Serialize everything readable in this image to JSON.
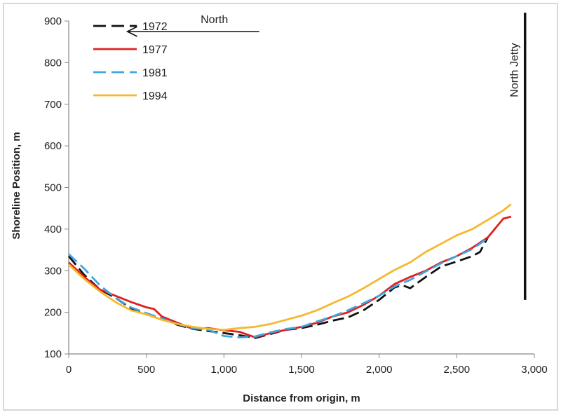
{
  "chart_data": {
    "type": "line",
    "xlabel": "Distance from origin, m",
    "ylabel": "Shoreline Position, m",
    "xlim": [
      0,
      3000
    ],
    "ylim": [
      100,
      900
    ],
    "xticks": [
      0,
      500,
      1000,
      1500,
      2000,
      2500,
      3000
    ],
    "xtick_labels": [
      "0",
      "500",
      "1,000",
      "1,500",
      "2,000",
      "2,500",
      "3,000"
    ],
    "yticks": [
      100,
      200,
      300,
      400,
      500,
      600,
      700,
      800,
      900
    ],
    "ytick_labels": [
      "100",
      "200",
      "300",
      "400",
      "500",
      "600",
      "700",
      "800",
      "900"
    ],
    "grid": false,
    "legend_position": "top-left",
    "series": [
      {
        "name": "1972",
        "color": "#111111",
        "dash": "long-dash",
        "x": [
          0,
          100,
          200,
          300,
          400,
          500,
          600,
          700,
          800,
          900,
          1000,
          1100,
          1200,
          1300,
          1400,
          1500,
          1600,
          1700,
          1800,
          1900,
          2000,
          2100,
          2150,
          2200,
          2300,
          2400,
          2500,
          2600,
          2650,
          2700
        ],
        "y": [
          335,
          290,
          255,
          235,
          210,
          195,
          185,
          170,
          160,
          155,
          150,
          145,
          138,
          148,
          158,
          162,
          170,
          180,
          188,
          205,
          230,
          260,
          265,
          258,
          285,
          310,
          322,
          335,
          345,
          380
        ]
      },
      {
        "name": "1977",
        "color": "#e02020",
        "dash": "solid",
        "x": [
          0,
          100,
          200,
          300,
          400,
          500,
          550,
          600,
          700,
          800,
          900,
          1000,
          1100,
          1200,
          1300,
          1400,
          1500,
          1600,
          1700,
          1800,
          1900,
          2000,
          2100,
          2200,
          2300,
          2400,
          2500,
          2600,
          2700,
          2800,
          2850
        ],
        "y": [
          320,
          285,
          255,
          240,
          225,
          212,
          208,
          190,
          175,
          160,
          162,
          157,
          153,
          140,
          150,
          158,
          165,
          175,
          190,
          200,
          218,
          240,
          268,
          285,
          300,
          320,
          335,
          355,
          380,
          425,
          430
        ]
      },
      {
        "name": "1981",
        "color": "#3ea6e0",
        "dash": "long-dash",
        "x": [
          0,
          100,
          200,
          300,
          400,
          500,
          600,
          700,
          800,
          900,
          1000,
          1100,
          1200,
          1300,
          1400,
          1500,
          1600,
          1700,
          1800,
          1900,
          2000,
          2100,
          2200,
          2300,
          2400,
          2500,
          2600,
          2700
        ],
        "y": [
          340,
          305,
          265,
          235,
          212,
          198,
          185,
          172,
          162,
          158,
          143,
          140,
          142,
          152,
          160,
          165,
          178,
          190,
          205,
          222,
          240,
          262,
          278,
          298,
          318,
          335,
          352,
          378
        ]
      },
      {
        "name": "1994",
        "color": "#f5b82e",
        "dash": "solid",
        "x": [
          0,
          100,
          200,
          300,
          400,
          500,
          600,
          700,
          800,
          900,
          1000,
          1100,
          1200,
          1300,
          1400,
          1500,
          1600,
          1700,
          1800,
          1900,
          2000,
          2100,
          2200,
          2300,
          2400,
          2500,
          2600,
          2700,
          2800,
          2850
        ],
        "y": [
          315,
          280,
          250,
          225,
          205,
          195,
          182,
          172,
          165,
          160,
          158,
          162,
          165,
          172,
          182,
          192,
          205,
          222,
          238,
          258,
          280,
          302,
          320,
          345,
          365,
          385,
          400,
          422,
          445,
          460
        ]
      }
    ],
    "annotations": {
      "north_label": "North",
      "jetty_label": "North Jetty",
      "jetty_x": 2940,
      "jetty_y_range": [
        230,
        920
      ],
      "arrow_x_range": [
        920,
        1770
      ]
    }
  }
}
